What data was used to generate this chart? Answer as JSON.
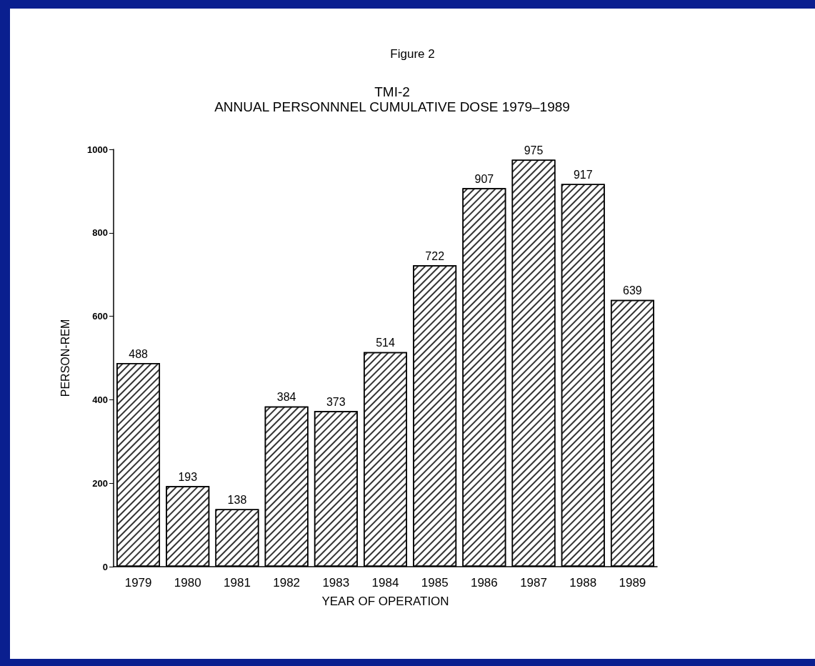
{
  "chart_data": {
    "type": "bar",
    "title": "TMI-2",
    "subtitle": "ANNUAL PERSONNNEL CUMULATIVE DOSE 1979–1989",
    "annotations": [
      "Figure 2"
    ],
    "xlabel": "YEAR OF OPERATION",
    "ylabel": "PERSON-REM",
    "categories": [
      "1979",
      "1980",
      "1981",
      "1982",
      "1983",
      "1984",
      "1985",
      "1986",
      "1987",
      "1988",
      "1989"
    ],
    "values": [
      488,
      193,
      138,
      384,
      373,
      514,
      722,
      907,
      975,
      917,
      639
    ],
    "color": "#ffffff",
    "ylim": [
      0,
      1000
    ],
    "yticks": [
      0,
      200,
      400,
      600,
      800,
      1000
    ],
    "data_labels": true,
    "grid": false
  }
}
